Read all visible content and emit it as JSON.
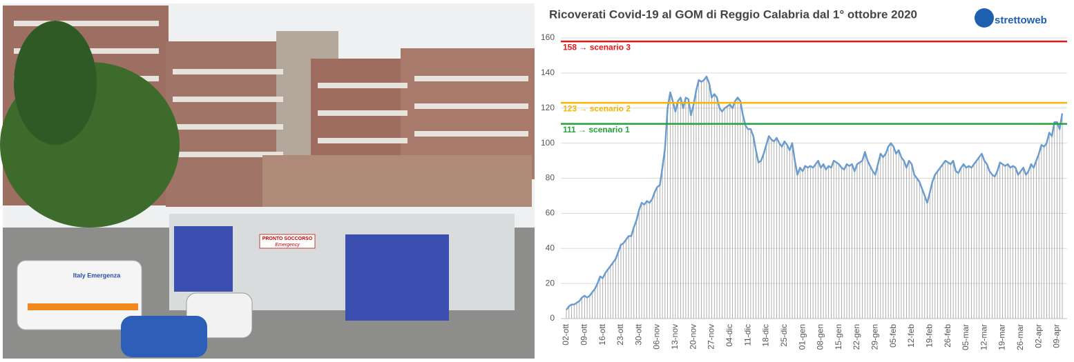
{
  "photo": {
    "sign": "PRONTO SOCCORSO",
    "sign_sub": "Emergency",
    "ambulance": "Italy Emergenza"
  },
  "logo": "strettoweb",
  "chart_data": {
    "type": "line",
    "title": "Ricoverati Covid-19 al GOM di Reggio Calabria dal 1° ottobre 2020",
    "categories": [
      "02-ott",
      null,
      null,
      null,
      null,
      null,
      null,
      "09-ott",
      null,
      null,
      null,
      null,
      null,
      null,
      "16-ott",
      null,
      null,
      null,
      null,
      null,
      null,
      "23-ott",
      null,
      null,
      null,
      null,
      null,
      null,
      "30-ott",
      null,
      null,
      null,
      null,
      null,
      null,
      "06-nov",
      null,
      null,
      null,
      null,
      null,
      null,
      "13-nov",
      null,
      null,
      null,
      null,
      null,
      null,
      "20-nov",
      null,
      null,
      null,
      null,
      null,
      null,
      "27-nov",
      null,
      null,
      null,
      null,
      null,
      null,
      "04-dic",
      null,
      null,
      null,
      null,
      null,
      null,
      "11-dic",
      null,
      null,
      null,
      null,
      null,
      null,
      "18-dic",
      null,
      null,
      null,
      null,
      null,
      null,
      "25-dic",
      null,
      null,
      null,
      null,
      null,
      null,
      "01-gen",
      null,
      null,
      null,
      null,
      null,
      null,
      "08-gen",
      null,
      null,
      null,
      null,
      null,
      null,
      "15-gen",
      null,
      null,
      null,
      null,
      null,
      null,
      "22-gen",
      null,
      null,
      null,
      null,
      null,
      null,
      "29-gen",
      null,
      null,
      null,
      null,
      null,
      null,
      "05-feb",
      null,
      null,
      null,
      null,
      null,
      null,
      "12-feb",
      null,
      null,
      null,
      null,
      null,
      null,
      "19-feb",
      null,
      null,
      null,
      null,
      null,
      null,
      "26-feb",
      null,
      null,
      null,
      null,
      null,
      null,
      "05-mar",
      null,
      null,
      null,
      null,
      null,
      null,
      "12-mar",
      null,
      null,
      null,
      null,
      null,
      null,
      "19-mar",
      null,
      null,
      null,
      null,
      null,
      null,
      "26-mar",
      null,
      null,
      null,
      null,
      null,
      null,
      "02-apr",
      null,
      null,
      null,
      null,
      null,
      null,
      "09-apr",
      null,
      null
    ],
    "values": [
      5,
      7,
      8,
      8,
      9,
      10,
      12,
      13,
      12,
      13,
      15,
      17,
      20,
      24,
      23,
      26,
      28,
      30,
      32,
      34,
      38,
      42,
      43,
      45,
      47,
      47,
      52,
      56,
      62,
      66,
      65,
      67,
      66,
      68,
      72,
      75,
      76,
      86,
      97,
      120,
      129,
      124,
      118,
      124,
      126,
      120,
      126,
      125,
      116,
      122,
      130,
      136,
      135,
      136,
      138,
      134,
      126,
      128,
      126,
      120,
      118,
      120,
      121,
      122,
      120,
      124,
      126,
      124,
      116,
      110,
      108,
      108,
      104,
      96,
      89,
      90,
      94,
      99,
      104,
      102,
      101,
      103,
      100,
      98,
      101,
      99,
      96,
      100,
      90,
      82,
      86,
      84,
      87,
      86,
      87,
      86,
      88,
      90,
      86,
      88,
      85,
      87,
      86,
      90,
      89,
      88,
      86,
      85,
      88,
      87,
      88,
      84,
      88,
      89,
      90,
      95,
      90,
      87,
      84,
      82,
      88,
      94,
      92,
      94,
      98,
      100,
      98,
      94,
      96,
      92,
      90,
      86,
      90,
      88,
      82,
      80,
      78,
      74,
      70,
      66,
      72,
      78,
      82,
      84,
      86,
      88,
      90,
      89,
      88,
      90,
      84,
      83,
      86,
      88,
      86,
      87,
      86,
      88,
      90,
      92,
      94,
      90,
      88,
      84,
      82,
      81,
      84,
      89,
      88,
      87,
      88,
      86,
      87,
      86,
      82,
      84,
      86,
      82,
      84,
      88,
      86,
      90,
      94,
      99,
      98,
      100,
      106,
      104,
      112,
      112,
      108,
      117
    ],
    "color": "#6a9ccf",
    "drop_line_color": "#9a9a9a",
    "ylim": [
      0,
      160
    ],
    "yticks": [
      0,
      20,
      40,
      60,
      80,
      100,
      120,
      140,
      160
    ],
    "grid": true,
    "reference_lines": [
      {
        "value": 158,
        "label": "158 → scenario 3",
        "color": "#e3161b"
      },
      {
        "value": 123,
        "label": "123 → scenario 2",
        "color": "#f5b400"
      },
      {
        "value": 111,
        "label": "111 → scenario 1",
        "color": "#1fa33a"
      }
    ]
  }
}
